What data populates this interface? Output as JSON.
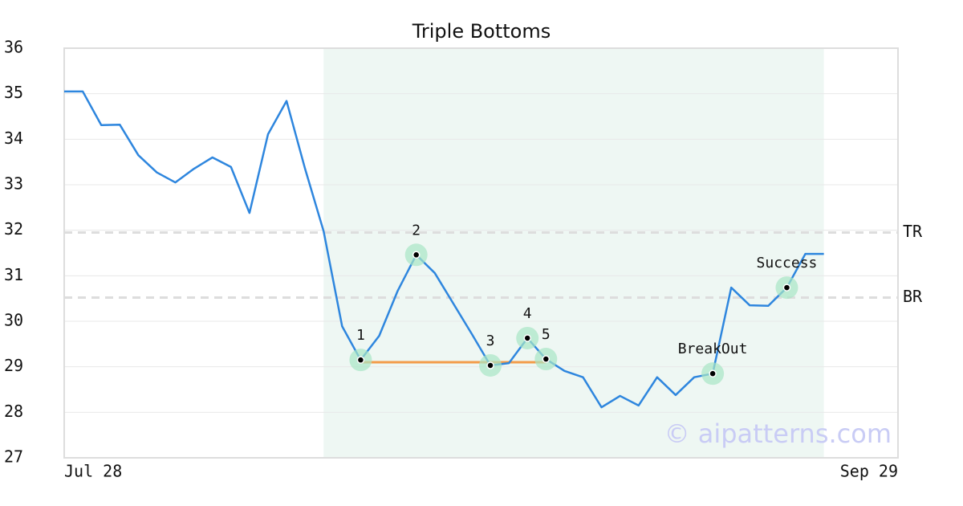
{
  "chart_data": {
    "type": "line",
    "title": "Triple Bottoms",
    "categories": [
      "Jul 28",
      null,
      null,
      null,
      null,
      null,
      null,
      null,
      null,
      null,
      null,
      null,
      null,
      null,
      null,
      null,
      null,
      null,
      null,
      null,
      null,
      null,
      null,
      null,
      null,
      null,
      null,
      null,
      null,
      null,
      null,
      null,
      null,
      null,
      null,
      null,
      null,
      null,
      null,
      null,
      null,
      null,
      null,
      null,
      null,
      "Sep 29"
    ],
    "values": [
      35.05,
      35.05,
      34.31,
      34.32,
      33.65,
      33.27,
      33.05,
      33.35,
      33.6,
      33.39,
      32.38,
      34.11,
      34.84,
      33.35,
      31.98,
      29.89,
      29.15,
      29.68,
      30.67,
      31.46,
      31.06,
      30.39,
      29.72,
      29.03,
      29.08,
      29.63,
      29.17,
      28.91,
      28.77,
      28.11,
      28.36,
      28.15,
      28.77,
      28.38,
      28.77,
      28.85,
      30.74,
      30.35,
      30.34,
      30.74,
      31.48,
      31.48,
      null,
      null,
      null,
      null
    ],
    "color": "#2e86de",
    "ylim": [
      27,
      36
    ],
    "yticks": [
      27,
      28,
      29,
      30,
      31,
      32,
      33,
      34,
      35,
      36
    ],
    "grid": true,
    "pattern_range": {
      "from": 14,
      "to": 41,
      "color": "#eef7f3"
    },
    "support": {
      "value": 29.1,
      "from": 16,
      "to": 26,
      "color": "#f39c4a"
    },
    "levels": [
      {
        "label": "TR",
        "value": 31.95
      },
      {
        "label": "BR",
        "value": 30.52
      }
    ],
    "points": [
      {
        "label": "1",
        "index": 16
      },
      {
        "label": "2",
        "index": 19
      },
      {
        "label": "3",
        "index": 23
      },
      {
        "label": "4",
        "index": 25
      },
      {
        "label": "5",
        "index": 26
      },
      {
        "label": "BreakOut",
        "index": 35
      },
      {
        "label": "Success",
        "index": 39
      }
    ],
    "watermark": "© aipatterns.com"
  }
}
